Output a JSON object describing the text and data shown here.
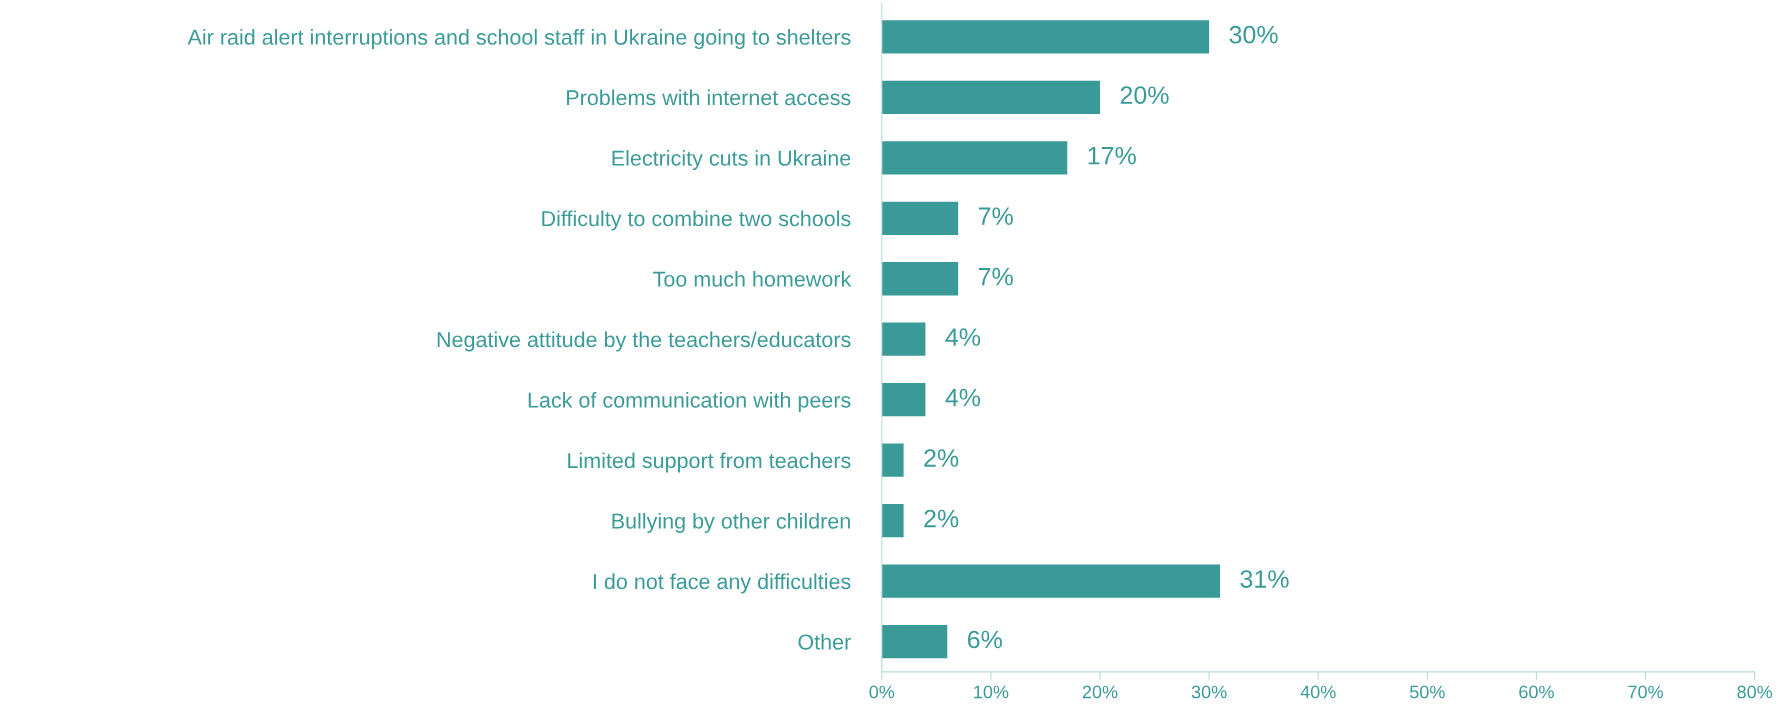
{
  "chart_data": {
    "type": "bar",
    "orientation": "horizontal",
    "categories": [
      "Air raid alert interruptions and school staff in Ukraine going to shelters",
      "Problems with internet access",
      "Electricity cuts in Ukraine",
      "Difficulty to combine two schools",
      "Too much homework",
      "Negative attitude by the teachers/educators",
      "Lack of communication with peers",
      "Limited support from teachers",
      "Bullying by other children",
      "I do not face any difficulties",
      "Other"
    ],
    "values": [
      30,
      20,
      17,
      7,
      7,
      4,
      4,
      2,
      2,
      31,
      6
    ],
    "value_labels": [
      "30%",
      "20%",
      "17%",
      "7%",
      "7%",
      "4%",
      "4%",
      "2%",
      "2%",
      "31%",
      "6%"
    ],
    "color": "#3a9a98",
    "xlim": [
      0,
      80
    ],
    "xticks": [
      {
        "value": 0,
        "label": "0%"
      },
      {
        "value": 10,
        "label": "10%"
      },
      {
        "value": 20,
        "label": "20%"
      },
      {
        "value": 30,
        "label": "30%"
      },
      {
        "value": 40,
        "label": "40%"
      },
      {
        "value": 50,
        "label": "50%"
      },
      {
        "value": 60,
        "label": "60%"
      },
      {
        "value": 70,
        "label": "70%"
      },
      {
        "value": 80,
        "label": "80%"
      }
    ],
    "grid": false
  }
}
